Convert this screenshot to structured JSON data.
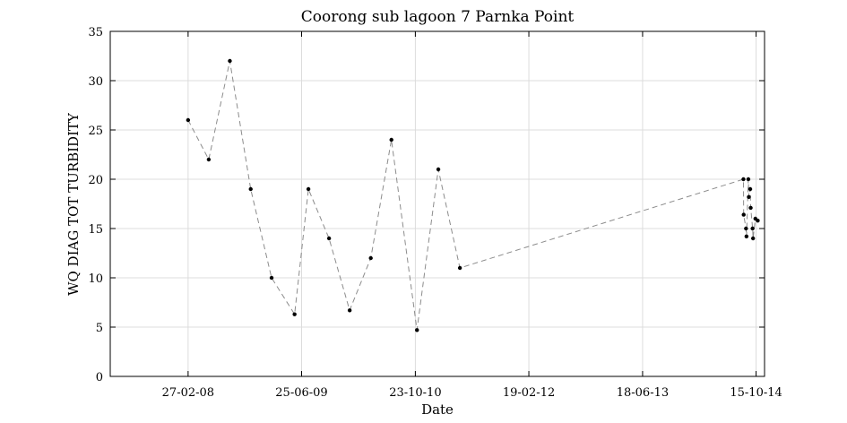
{
  "chart_data": {
    "type": "scatter",
    "title": "Coorong sub lagoon 7 Parnka Point",
    "xlabel": "Date",
    "ylabel": "WQ DIAG TOT TURBIDITY",
    "xlim": [
      "2007-04-01",
      "2014-11-20"
    ],
    "ylim": [
      0,
      35
    ],
    "yticks": [
      0,
      5,
      10,
      15,
      20,
      25,
      30,
      35
    ],
    "xticks": [
      {
        "date": "2008-02-27",
        "label": "27-02-08"
      },
      {
        "date": "2009-06-25",
        "label": "25-06-09"
      },
      {
        "date": "2010-10-23",
        "label": "23-10-10"
      },
      {
        "date": "2012-02-19",
        "label": "19-02-12"
      },
      {
        "date": "2013-06-18",
        "label": "18-06-13"
      },
      {
        "date": "2014-10-15",
        "label": "15-10-14"
      }
    ],
    "grid": true,
    "line_style": "dashed",
    "series": [
      {
        "points": [
          {
            "x": "2008-02-27",
            "y": 26
          },
          {
            "x": "2008-05-25",
            "y": 22
          },
          {
            "x": "2008-08-23",
            "y": 32
          },
          {
            "x": "2008-11-20",
            "y": 19
          },
          {
            "x": "2009-02-17",
            "y": 10
          },
          {
            "x": "2009-05-26",
            "y": 6.3
          },
          {
            "x": "2009-07-24",
            "y": 19
          },
          {
            "x": "2009-10-20",
            "y": 14
          },
          {
            "x": "2010-01-16",
            "y": 6.7
          },
          {
            "x": "2010-04-16",
            "y": 12
          },
          {
            "x": "2010-07-13",
            "y": 24
          },
          {
            "x": "2010-10-30",
            "y": 4.7
          },
          {
            "x": "2011-01-29",
            "y": 21
          },
          {
            "x": "2011-05-01",
            "y": 11
          },
          {
            "x": "2014-08-22",
            "y": 20
          },
          {
            "x": "2014-08-23",
            "y": 16.4
          },
          {
            "x": "2014-09-02",
            "y": 15
          },
          {
            "x": "2014-09-04",
            "y": 14.2
          },
          {
            "x": "2014-09-12",
            "y": 20
          },
          {
            "x": "2014-09-14",
            "y": 18.2
          },
          {
            "x": "2014-09-20",
            "y": 19
          },
          {
            "x": "2014-09-22",
            "y": 17.1
          },
          {
            "x": "2014-09-30",
            "y": 15
          },
          {
            "x": "2014-10-02",
            "y": 14
          },
          {
            "x": "2014-10-12",
            "y": 16
          },
          {
            "x": "2014-10-22",
            "y": 15.8
          }
        ]
      }
    ]
  }
}
